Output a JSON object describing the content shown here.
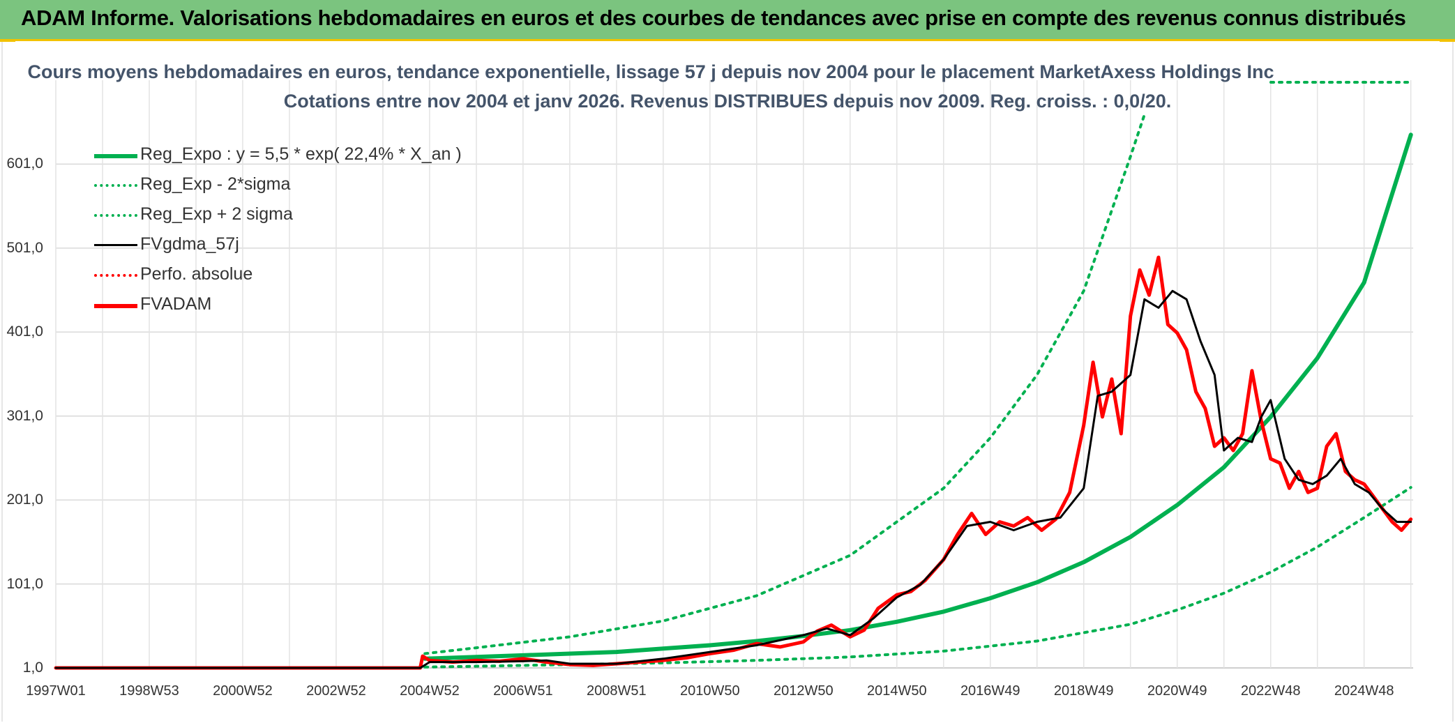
{
  "header": {
    "title": "ADAM Informe. Valorisations hebdomadaires en euros et des courbes de tendances avec prise en compte des revenus connus distribués"
  },
  "chart_data": {
    "type": "line",
    "title": "Cours moyens hebdomadaires en euros, tendance exponentielle, lissage 57 j depuis nov 2004 pour le placement MarketAxess Holdings Inc",
    "subtitle": "Cotations entre nov 2004 et janv 2026. Revenus DISTRIBUES depuis nov 2009. Reg. croiss. : 0,0/20.",
    "xlabel": "",
    "ylabel": "",
    "x_tick_labels": [
      "1997W01",
      "1998W53",
      "2000W52",
      "2002W52",
      "2004W52",
      "2006W51",
      "2008W51",
      "2010W50",
      "2012W50",
      "2014W50",
      "2016W49",
      "2018W49",
      "2020W49",
      "2022W48",
      "2024W48"
    ],
    "x_tick_years": [
      1997.0,
      1999.0,
      2001.0,
      2003.0,
      2005.0,
      2007.0,
      2009.0,
      2011.0,
      2013.0,
      2015.0,
      2017.0,
      2019.0,
      2021.0,
      2023.0,
      2025.0
    ],
    "y_tick_labels": [
      "1,0",
      "101,0",
      "201,0",
      "301,0",
      "401,0",
      "501,0",
      "601,0"
    ],
    "y_ticks": [
      1,
      101,
      201,
      301,
      401,
      501,
      601
    ],
    "ylim": [
      1,
      701
    ],
    "xlim": [
      1997.0,
      2026.05
    ],
    "grid": true,
    "legend_position": "top-left",
    "series": [
      {
        "name": "Reg_Expo : y = 5,5 * exp( 22,4% *  X_an )",
        "style": "solid-thick",
        "color": "#00b050",
        "x": [
          2004.9,
          2006,
          2007,
          2008,
          2009,
          2010,
          2011,
          2012,
          2013,
          2014,
          2015,
          2016,
          2017,
          2018,
          2019,
          2020,
          2021,
          2022,
          2023,
          2024,
          2025,
          2026.0
        ],
        "values": [
          12,
          14,
          16,
          18,
          20,
          24,
          28,
          33,
          39,
          46,
          56,
          68,
          84,
          103,
          127,
          157,
          195,
          240,
          300,
          370,
          460,
          636
        ]
      },
      {
        "name": "Reg_Exp - 2*sigma",
        "style": "dotted",
        "color": "#00b050",
        "x": [
          2004.9,
          2006,
          2008,
          2010,
          2012,
          2014,
          2016,
          2018,
          2020,
          2021,
          2022,
          2023,
          2024,
          2025,
          2026.0
        ],
        "values": [
          2,
          3,
          5,
          7,
          10,
          14,
          21,
          33,
          53,
          70,
          90,
          115,
          145,
          180,
          216
        ]
      },
      {
        "name": "Reg_Exp + 2 sigma",
        "style": "dotted",
        "color": "#00b050",
        "x": [
          2004.9,
          2006,
          2008,
          2010,
          2012,
          2014,
          2016,
          2017,
          2018,
          2019,
          2019.5,
          2020,
          2020.3
        ],
        "values": [
          18,
          25,
          38,
          57,
          87,
          135,
          215,
          275,
          350,
          450,
          530,
          610,
          660
        ]
      },
      {
        "name": "FVgdma_57j",
        "style": "solid",
        "color": "#000000",
        "x": [
          1997.0,
          2004.8,
          2005.0,
          2005.5,
          2006,
          2007,
          2007.5,
          2008,
          2009,
          2010,
          2011,
          2012,
          2013,
          2013.5,
          2014,
          2014.5,
          2015,
          2015.5,
          2016,
          2016.5,
          2017,
          2017.5,
          2018,
          2018.5,
          2019,
          2019.3,
          2019.6,
          2020,
          2020.3,
          2020.6,
          2020.9,
          2021.2,
          2021.5,
          2021.8,
          2022,
          2022.3,
          2022.6,
          2022.8,
          2023,
          2023.3,
          2023.6,
          2023.9,
          2024.2,
          2024.5,
          2024.8,
          2025.1,
          2025.4,
          2025.7,
          2026.0
        ],
        "values": [
          1,
          1,
          8,
          8,
          8,
          9,
          10,
          6,
          6,
          12,
          20,
          28,
          40,
          48,
          40,
          60,
          85,
          100,
          130,
          170,
          175,
          165,
          175,
          180,
          215,
          325,
          330,
          350,
          440,
          430,
          450,
          440,
          390,
          350,
          260,
          275,
          270,
          300,
          320,
          250,
          225,
          220,
          230,
          250,
          220,
          210,
          190,
          175,
          175
        ]
      },
      {
        "name": "Perfo. absolue",
        "style": "dotted",
        "color": "#ff0000",
        "x": [],
        "values": []
      },
      {
        "name": "FVADAM",
        "style": "solid-thick",
        "color": "#ff0000",
        "x": [
          1997.0,
          2004.8,
          2004.85,
          2005.0,
          2005.5,
          2006,
          2006.5,
          2007,
          2007.5,
          2008,
          2008.5,
          2009,
          2009.5,
          2010,
          2010.5,
          2011,
          2011.5,
          2012,
          2012.5,
          2013,
          2013.3,
          2013.6,
          2014,
          2014.3,
          2014.6,
          2015,
          2015.3,
          2015.6,
          2016,
          2016.3,
          2016.6,
          2016.9,
          2017.2,
          2017.5,
          2017.8,
          2018.1,
          2018.4,
          2018.7,
          2019,
          2019.2,
          2019.4,
          2019.6,
          2019.8,
          2020.0,
          2020.2,
          2020.4,
          2020.6,
          2020.8,
          2021.0,
          2021.2,
          2021.4,
          2021.6,
          2021.8,
          2022.0,
          2022.2,
          2022.4,
          2022.6,
          2022.8,
          2023.0,
          2023.2,
          2023.4,
          2023.6,
          2023.8,
          2024.0,
          2024.2,
          2024.4,
          2024.6,
          2024.8,
          2025.0,
          2025.2,
          2025.4,
          2025.6,
          2025.8,
          2026.0
        ],
        "values": [
          1,
          1,
          15,
          10,
          8,
          10,
          9,
          12,
          8,
          5,
          4,
          6,
          8,
          10,
          13,
          18,
          22,
          30,
          26,
          32,
          45,
          52,
          38,
          46,
          72,
          88,
          92,
          105,
          130,
          160,
          185,
          160,
          175,
          170,
          180,
          165,
          178,
          210,
          290,
          365,
          300,
          345,
          280,
          420,
          475,
          445,
          490,
          410,
          400,
          380,
          330,
          310,
          265,
          275,
          260,
          280,
          355,
          295,
          250,
          245,
          215,
          235,
          210,
          215,
          265,
          280,
          235,
          225,
          220,
          205,
          190,
          175,
          165,
          178
        ]
      }
    ]
  }
}
